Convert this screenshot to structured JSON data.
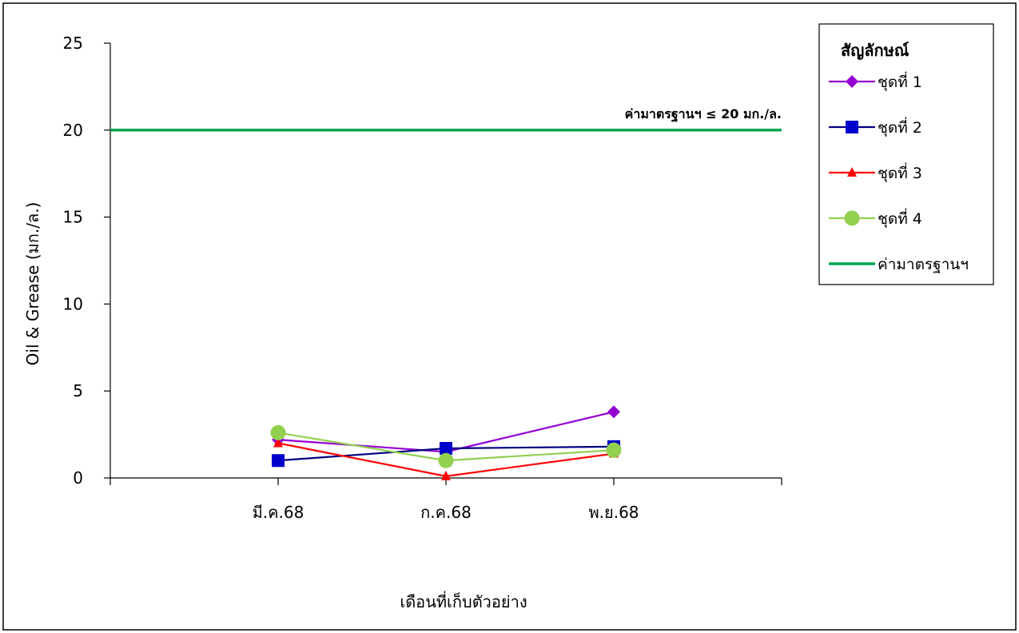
{
  "chart_data": {
    "type": "line",
    "title": "",
    "xlabel": "เดือนที่เก็บตัวอย่าง",
    "ylabel": "Oil & Grease  (มก./ล.)",
    "ylim": [
      0,
      25
    ],
    "yticks": [
      0,
      5,
      10,
      15,
      20,
      25
    ],
    "categories": [
      "มี.ค.68",
      "ก.ค.68",
      "พ.ย.68"
    ],
    "series": [
      {
        "name": "ชุดที่ 1",
        "values": [
          2.2,
          1.5,
          3.8
        ],
        "color": "#9400D3",
        "marker": "diamond"
      },
      {
        "name": "ชุดที่ 2",
        "values": [
          1.0,
          1.7,
          1.8
        ],
        "color": "#000080",
        "marker_color": "#0000CC",
        "marker": "square"
      },
      {
        "name": "ชุดที่ 3",
        "values": [
          2.0,
          0.1,
          1.4
        ],
        "color": "#FF0000",
        "marker": "triangle"
      },
      {
        "name": "ชุดที่ 4",
        "values": [
          2.6,
          1.0,
          1.6
        ],
        "color": "#92D050",
        "marker": "circle"
      }
    ],
    "standard_line": {
      "name": "ค่ามาตรฐานฯ",
      "value": 20,
      "color": "#00A550"
    },
    "annotation": "ค่ามาตรฐานฯ ≤ 20 มก./ล.",
    "legend_title": "สัญลักษณ์",
    "legend_position": "top-right",
    "grid": false
  }
}
